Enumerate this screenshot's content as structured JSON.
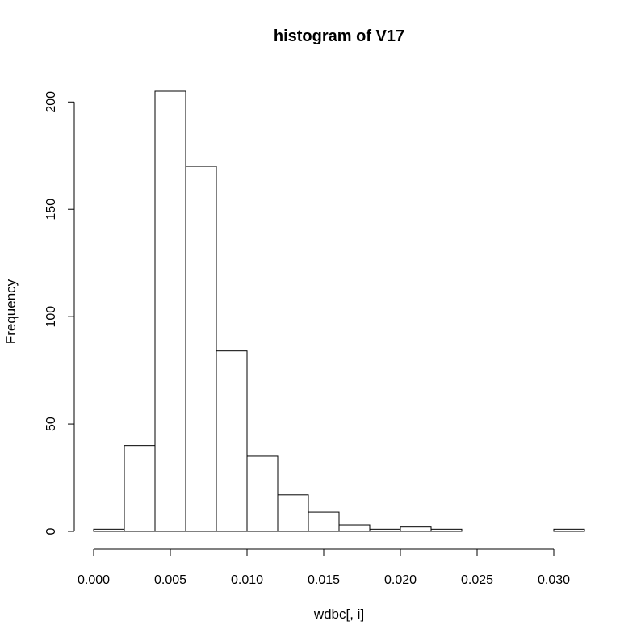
{
  "chart_data": {
    "type": "bar",
    "title": "histogram of  V17",
    "xlabel": "wdbc[, i]",
    "ylabel": "Frequency",
    "bin_edges": [
      0.0,
      0.002,
      0.004,
      0.006,
      0.008,
      0.01,
      0.012,
      0.014,
      0.016,
      0.018,
      0.02,
      0.022,
      0.024,
      0.026,
      0.028,
      0.03,
      0.032
    ],
    "values": [
      1,
      40,
      205,
      170,
      84,
      35,
      17,
      9,
      3,
      1,
      2,
      1,
      0,
      0,
      0,
      1
    ],
    "xlim": [
      0.0,
      0.032
    ],
    "ylim": [
      0,
      205
    ],
    "x_ticks": [
      0.0,
      0.005,
      0.01,
      0.015,
      0.02,
      0.025,
      0.03
    ],
    "x_tick_labels": [
      "0.000",
      "0.005",
      "0.010",
      "0.015",
      "0.020",
      "0.025",
      "0.030"
    ],
    "y_ticks": [
      0,
      50,
      100,
      150,
      200
    ],
    "y_tick_labels": [
      "0",
      "50",
      "100",
      "150",
      "200"
    ],
    "grid": false,
    "legend": "none"
  }
}
